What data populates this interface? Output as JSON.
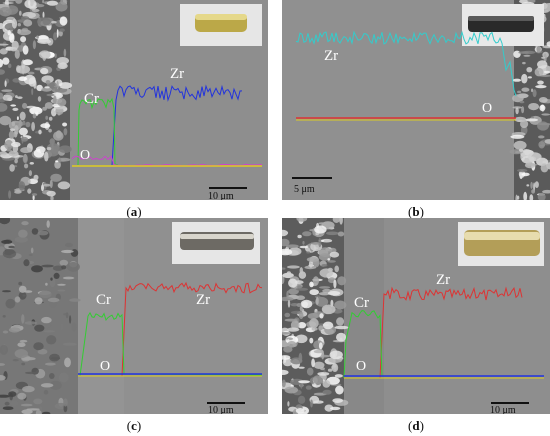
{
  "panels": [
    {
      "id": "a",
      "caption": "a",
      "labels": {
        "cr": "Cr",
        "zr": "Zr",
        "o": "O"
      },
      "scale_bar": "10 μm",
      "colors": {
        "zr": "#2233dd",
        "cr": "#33cc33",
        "o": "#cc44cc",
        "base": "#ddcc22"
      }
    },
    {
      "id": "b",
      "caption": "b",
      "labels": {
        "zr": "Zr",
        "o": "O"
      },
      "scale_bar": "5 μm",
      "colors": {
        "zr": "#33cccc",
        "o": "#dd3333",
        "base": "#ddcc22"
      }
    },
    {
      "id": "c",
      "caption": "c",
      "labels": {
        "cr": "Cr",
        "zr": "Zr",
        "o": "O"
      },
      "scale_bar": "10 μm",
      "colors": {
        "zr": "#dd3333",
        "cr": "#33cc33",
        "o": "#2233dd",
        "base": "#ddcc22"
      }
    },
    {
      "id": "d",
      "caption": "d",
      "labels": {
        "cr": "Cr",
        "zr": "Zr",
        "o": "O"
      },
      "scale_bar": "10 μm",
      "colors": {
        "zr": "#dd3333",
        "cr": "#33cc33",
        "o": "#2233dd",
        "base": "#ddcc22"
      }
    }
  ]
}
